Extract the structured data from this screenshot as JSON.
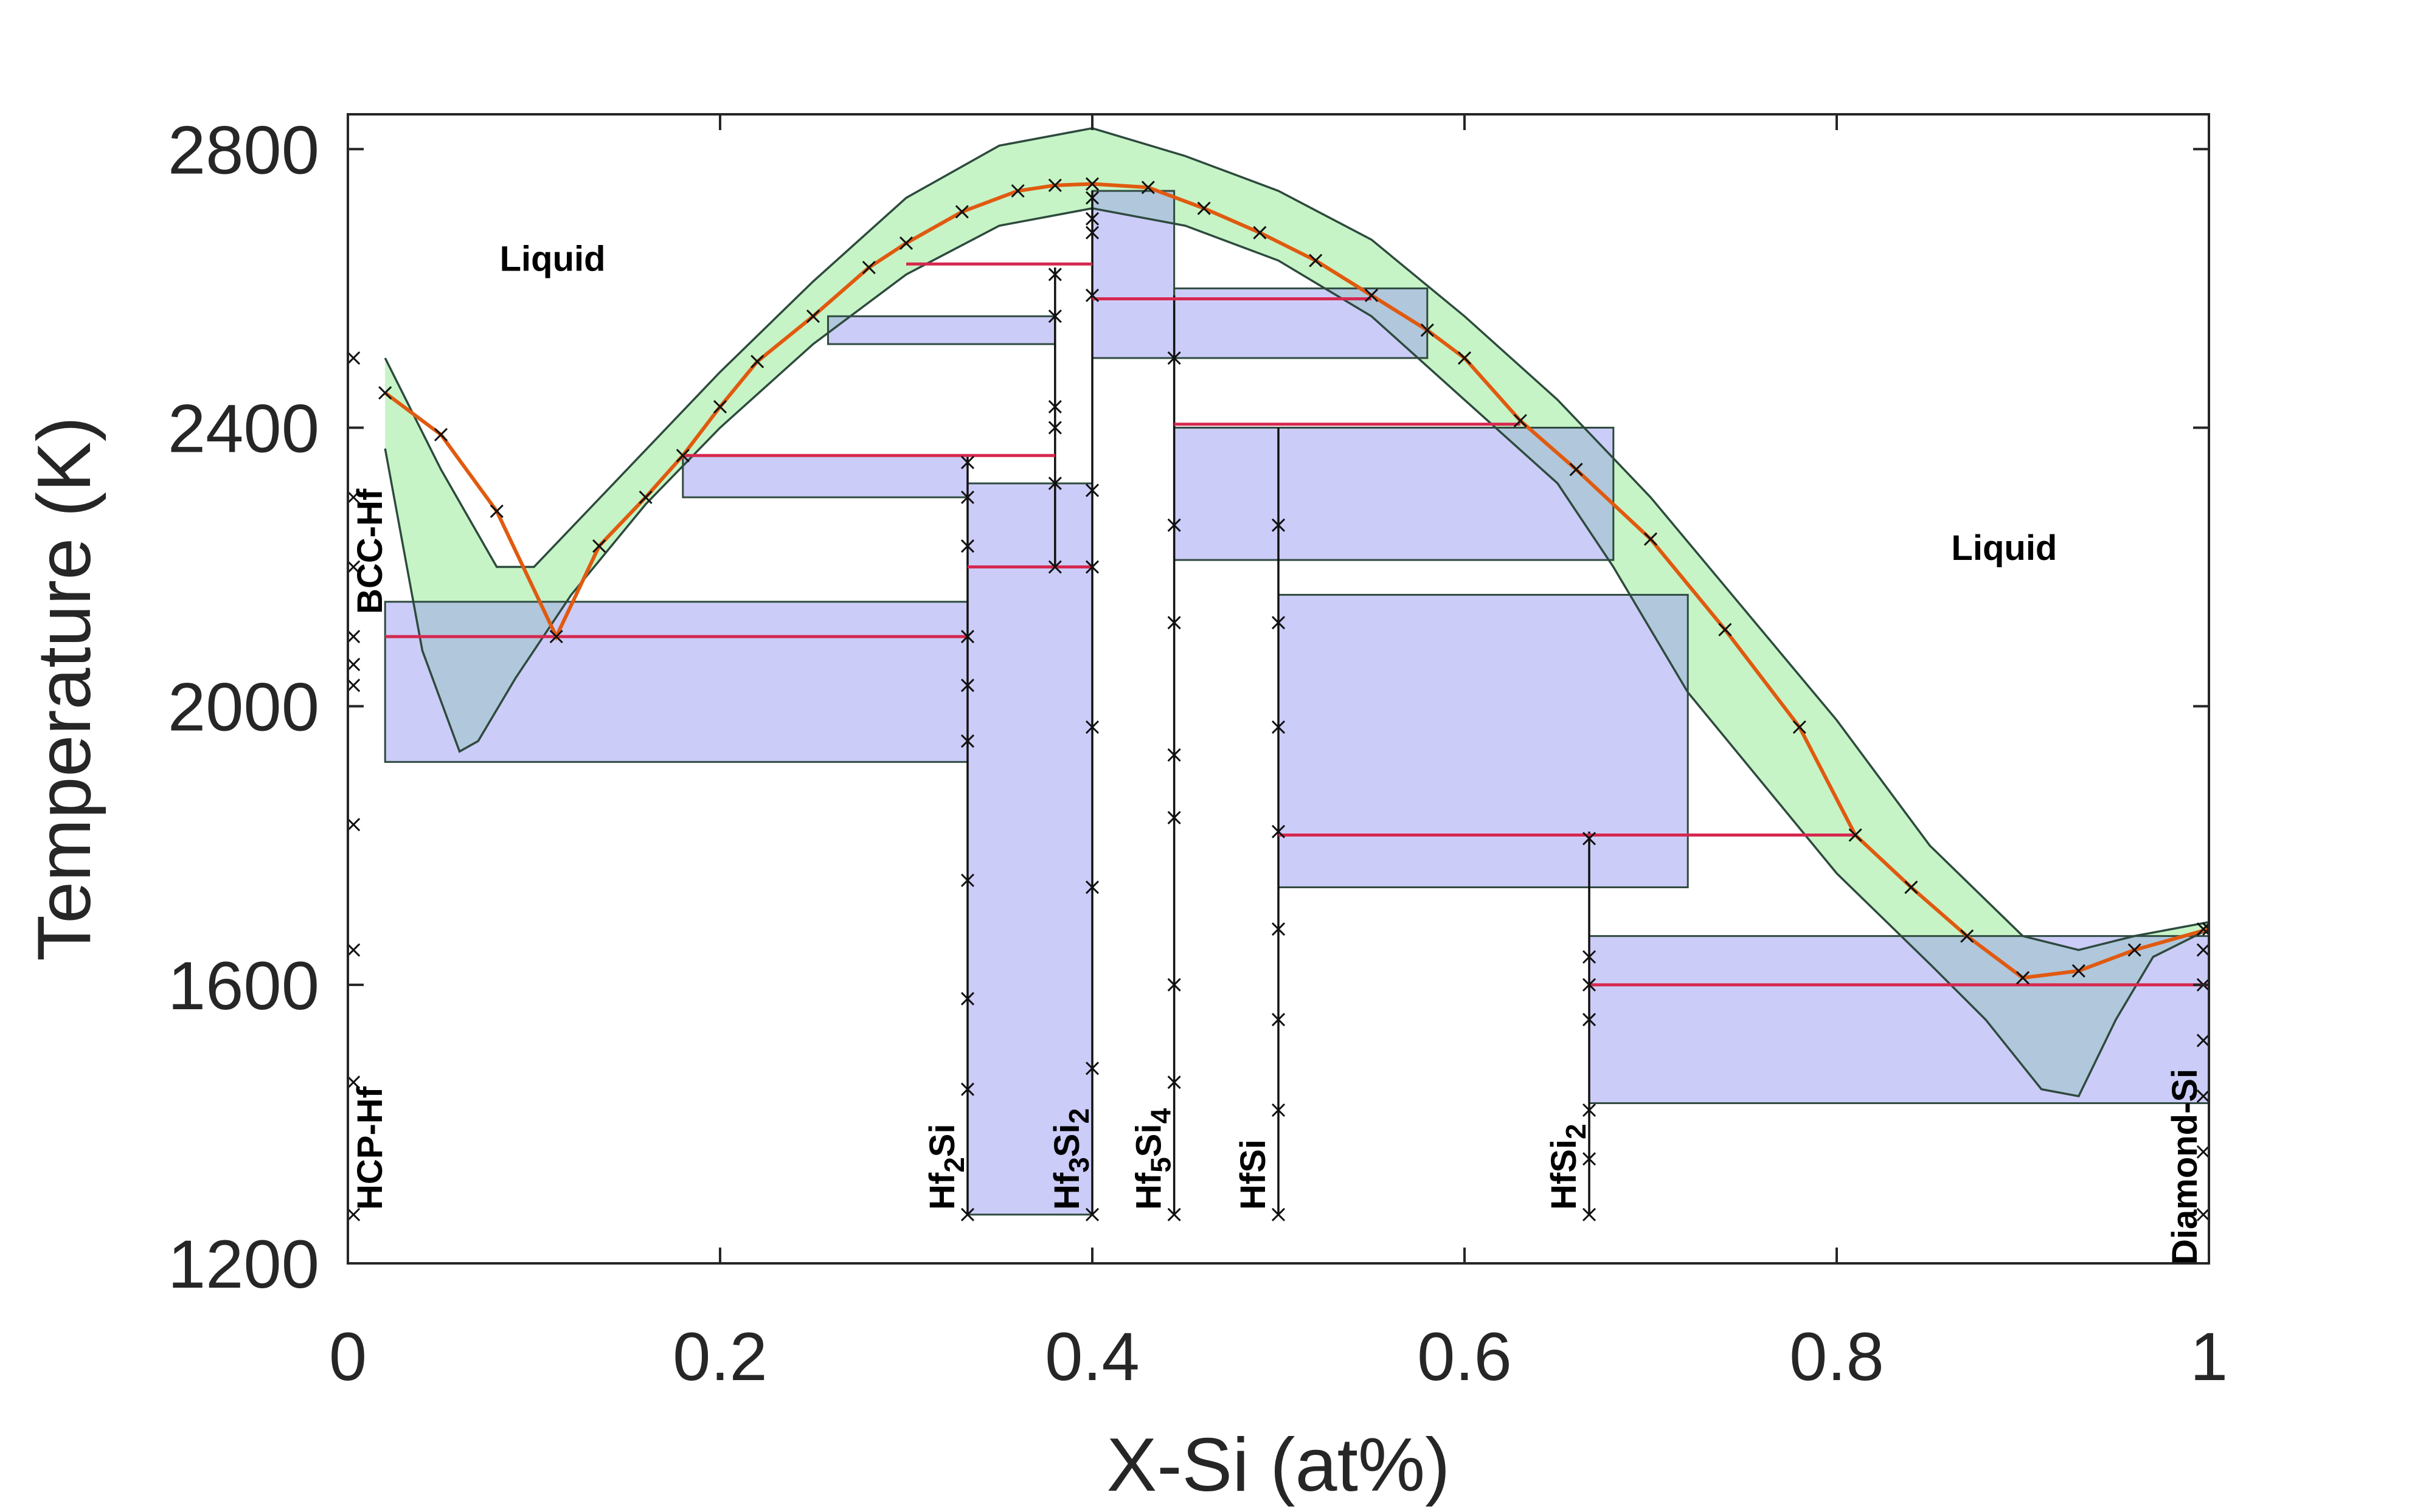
{
  "chart_data": {
    "type": "line",
    "xlabel": "X-Si (at%)",
    "ylabel": "Temperature (K)",
    "xlim": [
      0,
      1
    ],
    "ylim": [
      1200,
      2850
    ],
    "xticks": [
      0,
      0.2,
      0.4,
      0.6,
      0.8,
      1
    ],
    "xtick_labels": [
      "0",
      "0.2",
      "0.4",
      "0.6",
      "0.8",
      "1"
    ],
    "yticks": [
      1200,
      1600,
      2000,
      2400,
      2800
    ],
    "ytick_labels": [
      "1200",
      "1600",
      "2000",
      "2400",
      "2800"
    ],
    "grid": false,
    "colors": {
      "liquidus_band": "#b3f0b3",
      "two_phase_region": "#9999f2",
      "boundary_line": "#2e4a3e",
      "calculated_liquidus": "#e05a10",
      "invariant_line": "#d6284f",
      "marker": "#111111"
    },
    "phase_labels": [
      {
        "text": "Liquid",
        "x": 0.11,
        "y": 2625
      },
      {
        "text": "Liquid",
        "x": 0.89,
        "y": 2210
      }
    ],
    "compound_labels": [
      {
        "label": "HCP-Hf",
        "x": 0.0
      },
      {
        "label": "BCC-Hf",
        "x": 0.0
      },
      {
        "base": "Hf",
        "sub1": "2",
        "mid": "Si",
        "sub2": "",
        "x": 0.333
      },
      {
        "base": "Hf",
        "sub1": "3",
        "mid": "Si",
        "sub2": "2",
        "x": 0.4
      },
      {
        "base": "Hf",
        "sub1": "5",
        "mid": "Si",
        "sub2": "4",
        "x": 0.444
      },
      {
        "base": "HfSi",
        "sub1": "",
        "mid": "",
        "sub2": "",
        "x": 0.5
      },
      {
        "base": "HfSi",
        "sub1": "2",
        "mid": "",
        "sub2": "",
        "x": 0.667
      },
      {
        "label": "Diamond-Si",
        "x": 1.0
      }
    ],
    "liquidus_upper": {
      "x": [
        0.02,
        0.05,
        0.08,
        0.1,
        0.15,
        0.2,
        0.25,
        0.3,
        0.35,
        0.4,
        0.45,
        0.5,
        0.55,
        0.6,
        0.65,
        0.7,
        0.75,
        0.8,
        0.85,
        0.9,
        0.93,
        0.96,
        1.0
      ],
      "y": [
        2500,
        2340,
        2200,
        2200,
        2340,
        2480,
        2610,
        2730,
        2805,
        2830,
        2790,
        2740,
        2670,
        2560,
        2440,
        2300,
        2140,
        1980,
        1800,
        1670,
        1650,
        1670,
        1690
      ]
    },
    "liquidus_lower": {
      "x": [
        0.02,
        0.04,
        0.06,
        0.07,
        0.09,
        0.12,
        0.16,
        0.2,
        0.25,
        0.3,
        0.35,
        0.4,
        0.45,
        0.5,
        0.55,
        0.6,
        0.65,
        0.68,
        0.72,
        0.76,
        0.8,
        0.85,
        0.88,
        0.91,
        0.93,
        0.95,
        0.97,
        1.0
      ],
      "y": [
        2370,
        2080,
        1935,
        1950,
        2040,
        2160,
        2290,
        2400,
        2520,
        2620,
        2690,
        2715,
        2690,
        2640,
        2560,
        2440,
        2320,
        2200,
        2020,
        1890,
        1760,
        1630,
        1550,
        1450,
        1440,
        1550,
        1640,
        1680
      ]
    },
    "calculated_liquidus": {
      "x": [
        0.02,
        0.05,
        0.08,
        0.112,
        0.135,
        0.16,
        0.18,
        0.2,
        0.22,
        0.25,
        0.28,
        0.3,
        0.33,
        0.36,
        0.38,
        0.4,
        0.43,
        0.46,
        0.49,
        0.52,
        0.55,
        0.58,
        0.6,
        0.63,
        0.66,
        0.7,
        0.74,
        0.78,
        0.81,
        0.84,
        0.87,
        0.9,
        0.93,
        0.96,
        1.0
      ],
      "y": [
        2450,
        2390,
        2280,
        2100,
        2230,
        2300,
        2360,
        2430,
        2495,
        2560,
        2630,
        2665,
        2710,
        2740,
        2748,
        2750,
        2745,
        2715,
        2680,
        2640,
        2590,
        2540,
        2500,
        2410,
        2340,
        2240,
        2110,
        1970,
        1815,
        1740,
        1670,
        1610,
        1620,
        1650,
        1680
      ]
    },
    "two_phase_regions": [
      {
        "x": [
          0.02,
          0.333
        ],
        "y": [
          1920,
          2150
        ]
      },
      {
        "x": [
          0.258,
          0.38
        ],
        "y": [
          2520,
          2560
        ]
      },
      {
        "x": [
          0.18,
          0.333
        ],
        "y": [
          2300,
          2360
        ]
      },
      {
        "x": [
          0.333,
          0.4
        ],
        "y": [
          1270,
          2320
        ]
      },
      {
        "x": [
          0.4,
          0.444
        ],
        "y": [
          2500,
          2740
        ]
      },
      {
        "x": [
          0.444,
          0.58
        ],
        "y": [
          2500,
          2600
        ]
      },
      {
        "x": [
          0.444,
          0.68
        ],
        "y": [
          2210,
          2400
        ]
      },
      {
        "x": [
          0.5,
          0.72
        ],
        "y": [
          1740,
          2160
        ]
      },
      {
        "x": [
          0.667,
          1.0
        ],
        "y": [
          1430,
          1670
        ]
      }
    ],
    "invariant_lines": [
      {
        "x1": 0.02,
        "x2": 0.333,
        "y": 2100
      },
      {
        "x1": 0.18,
        "x2": 0.38,
        "y": 2360
      },
      {
        "x1": 0.3,
        "x2": 0.4,
        "y": 2635
      },
      {
        "x1": 0.333,
        "x2": 0.4,
        "y": 2200
      },
      {
        "x1": 0.4,
        "x2": 0.55,
        "y": 2585
      },
      {
        "x1": 0.444,
        "x2": 0.63,
        "y": 2405
      },
      {
        "x1": 0.5,
        "x2": 0.81,
        "y": 1815
      },
      {
        "x1": 0.667,
        "x2": 1.0,
        "y": 1600
      }
    ],
    "vertical_phase_lines": [
      {
        "x": 0.333,
        "y1": 1270,
        "y2": 2360
      },
      {
        "x": 0.38,
        "y1": 2200,
        "y2": 2630
      },
      {
        "x": 0.4,
        "y1": 1270,
        "y2": 2740
      },
      {
        "x": 0.444,
        "y1": 1270,
        "y2": 2590
      },
      {
        "x": 0.5,
        "y1": 1270,
        "y2": 2400
      },
      {
        "x": 0.667,
        "y1": 1270,
        "y2": 1820
      }
    ],
    "experimental_points": {
      "x": [
        0.003,
        0.003,
        0.003,
        0.003,
        0.003,
        0.003,
        0.003,
        0.003,
        0.003,
        0.003,
        0.333,
        0.333,
        0.333,
        0.333,
        0.333,
        0.333,
        0.333,
        0.333,
        0.333,
        0.333,
        0.38,
        0.38,
        0.38,
        0.38,
        0.38,
        0.38,
        0.4,
        0.4,
        0.4,
        0.4,
        0.4,
        0.4,
        0.4,
        0.4,
        0.4,
        0.4,
        0.444,
        0.444,
        0.444,
        0.444,
        0.444,
        0.444,
        0.444,
        0.444,
        0.5,
        0.5,
        0.5,
        0.5,
        0.5,
        0.5,
        0.5,
        0.5,
        0.667,
        0.667,
        0.667,
        0.667,
        0.667,
        0.667,
        0.667,
        0.997,
        0.997,
        0.997,
        0.997,
        0.997,
        0.997,
        0.997
      ],
      "y": [
        1270,
        1460,
        1650,
        1830,
        2030,
        2060,
        2100,
        2200,
        2300,
        2500,
        1270,
        1450,
        1580,
        1750,
        1950,
        2030,
        2100,
        2230,
        2300,
        2350,
        2200,
        2320,
        2400,
        2430,
        2560,
        2620,
        1270,
        1480,
        1740,
        1970,
        2200,
        2310,
        2590,
        2680,
        2700,
        2730,
        1270,
        1460,
        1600,
        1840,
        1930,
        2120,
        2260,
        2500,
        1270,
        1420,
        1550,
        1680,
        1820,
        1970,
        2120,
        2260,
        1270,
        1350,
        1420,
        1550,
        1600,
        1640,
        1810,
        1270,
        1360,
        1440,
        1520,
        1600,
        1650,
        1680
      ]
    }
  }
}
